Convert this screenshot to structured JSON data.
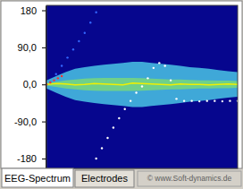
{
  "chart_data": {
    "type": "line",
    "xlim": [
      0,
      100
    ],
    "ylim": [
      -204,
      192
    ],
    "yticks": [
      180,
      {
        "value": 90,
        "label": "90,0"
      },
      {
        "value": 0,
        "label": "0,0"
      },
      {
        "value": -90,
        "label": "-90,0"
      },
      -180
    ],
    "tick_labels": "y",
    "grid": false,
    "x": [
      0,
      5,
      10,
      15,
      20,
      25,
      30,
      35,
      40,
      45,
      50,
      55,
      60,
      65,
      70,
      75,
      80,
      85,
      90,
      95,
      100
    ],
    "series": [
      {
        "type": "area",
        "color": "#3fa8d8",
        "values": [
          10,
          20,
          30,
          38,
          42,
          45,
          48,
          50,
          52,
          55,
          55,
          52,
          50,
          48,
          45,
          42,
          40,
          38,
          35,
          32,
          30
        ],
        "low": [
          -10,
          -20,
          -30,
          -38,
          -42,
          -45,
          -48,
          -50,
          -52,
          -55,
          -55,
          -52,
          -50,
          -48,
          -45,
          -42,
          -40,
          -38,
          -35,
          -32,
          -30
        ]
      },
      {
        "type": "area",
        "color": "#6fd08a",
        "values": [
          3,
          6,
          10,
          12,
          14,
          15,
          16,
          16,
          16,
          16,
          15,
          14,
          13,
          12,
          12,
          11,
          10,
          10,
          9,
          9,
          8
        ],
        "low": [
          -3,
          -6,
          -10,
          -12,
          -14,
          -15,
          -16,
          -16,
          -16,
          -16,
          -15,
          -14,
          -13,
          -12,
          -12,
          -11,
          -10,
          -10,
          -9,
          -9,
          -8
        ]
      },
      {
        "type": "line",
        "color": "#f0f000",
        "values": [
          0,
          2,
          1,
          -1,
          0,
          2,
          1,
          0,
          -1,
          3,
          2,
          1,
          0,
          -1,
          1,
          0,
          0,
          -1,
          0,
          1,
          0
        ]
      },
      {
        "type": "scatter",
        "color": "#ffffff",
        "marker": "circle",
        "x": [
          26,
          29,
          32,
          35,
          38,
          41,
          44,
          47,
          50,
          53,
          56,
          59,
          62,
          65,
          68,
          72,
          76,
          80,
          84,
          88,
          92,
          96,
          100
        ],
        "values": [
          -180,
          -155,
          -130,
          -105,
          -82,
          -60,
          -40,
          -20,
          -5,
          15,
          40,
          52,
          45,
          10,
          -35,
          -40,
          -40,
          -41,
          -40,
          -40,
          -41,
          -40,
          -40
        ]
      },
      {
        "type": "scatter",
        "color": "#3366ff",
        "marker": "circle",
        "x": [
          2,
          5,
          8,
          11,
          14,
          17,
          20,
          23,
          26
        ],
        "values": [
          5,
          25,
          45,
          65,
          85,
          105,
          125,
          150,
          175
        ]
      },
      {
        "type": "scatter",
        "color": "#ff3030",
        "marker": "circle",
        "x": [
          0,
          2,
          4,
          6,
          8
        ],
        "values": [
          0,
          5,
          10,
          15,
          20
        ]
      }
    ]
  },
  "tabs": [
    "EEG-Spectrum",
    "Electrodes"
  ],
  "footer": "© www.Soft-dynamics.de"
}
